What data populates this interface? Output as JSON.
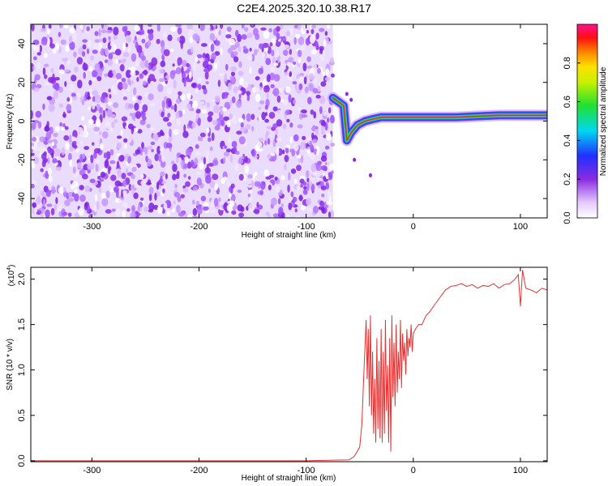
{
  "title": "C2E4.2025.320.10.38.R17",
  "chart_data": [
    {
      "type": "heatmap",
      "xlabel": "Height of straight line (km)",
      "ylabel": "Frequency (Hz)",
      "xlim": [
        -357,
        125
      ],
      "ylim": [
        -50,
        50
      ],
      "xticks": [
        -300,
        -200,
        -100,
        0,
        100
      ],
      "xtick_labels": [
        "-300",
        "-200",
        "-100",
        "0",
        "100"
      ],
      "yticks": [
        -40,
        -20,
        0,
        20,
        40
      ],
      "ytick_labels": [
        "-40",
        "-20",
        "0",
        "20",
        "40"
      ],
      "noise_region_x": [
        -357,
        -75
      ],
      "signal_track": {
        "x": [
          -75,
          -70,
          -65,
          -62,
          -58,
          -52,
          -45,
          -38,
          -30,
          -20,
          -10,
          0,
          20,
          40,
          60,
          80,
          100,
          125
        ],
        "y": [
          12,
          10,
          8,
          -10,
          -6,
          -2,
          0,
          1,
          2,
          2,
          2,
          2,
          2,
          2,
          2.5,
          3,
          3,
          3
        ]
      },
      "colorbar": {
        "label": "Normalized spectral amplitude",
        "range": [
          0,
          1
        ],
        "ticks": [
          0.0,
          0.2,
          0.4,
          0.6,
          0.8
        ],
        "tick_labels": [
          "0.0",
          "0.2",
          "0.4",
          "0.6",
          "0.8"
        ]
      }
    },
    {
      "type": "line",
      "xlabel": "Height of straight line (km)",
      "ylabel": "SNR (10 * v/v)",
      "multiplier": "(x10^4)",
      "multiplier_base": "(x10",
      "multiplier_exp": "4",
      "multiplier_close": ")",
      "xlim": [
        -357,
        125
      ],
      "ylim": [
        -0.01,
        2.13
      ],
      "xticks": [
        -300,
        -200,
        -100,
        0,
        100
      ],
      "xtick_labels": [
        "-300",
        "-200",
        "-100",
        "0",
        "100"
      ],
      "yticks": [
        0.0,
        0.5,
        1.0,
        1.5,
        2.0
      ],
      "ytick_labels": [
        "0.0",
        "0.5",
        "1.0",
        "1.5",
        "2.0"
      ],
      "color": "#e83030",
      "series": [
        {
          "name": "SNR",
          "x": [
            -357,
            -300,
            -200,
            -100,
            -60,
            -55,
            -50,
            -48,
            -46,
            -44,
            -43,
            -42,
            -41,
            -40,
            -39,
            -38,
            -37,
            -36,
            -35,
            -34,
            -33,
            -32,
            -31,
            -30,
            -29,
            -28,
            -27,
            -26,
            -25,
            -24,
            -23,
            -22,
            -21,
            -20,
            -19,
            -18,
            -17,
            -16,
            -15,
            -14,
            -13,
            -12,
            -11,
            -10,
            -9,
            -8,
            -7,
            -6,
            -5,
            -4,
            -3,
            -2,
            -1,
            0,
            2,
            5,
            8,
            12,
            16,
            20,
            25,
            30,
            35,
            40,
            45,
            50,
            55,
            60,
            65,
            70,
            75,
            80,
            85,
            90,
            95,
            98,
            100,
            102,
            105,
            110,
            115,
            120,
            125
          ],
          "y": [
            0.0,
            0.0,
            0.0,
            0.0,
            0.01,
            0.05,
            0.15,
            0.4,
            1.0,
            1.55,
            0.9,
            1.45,
            0.6,
            1.6,
            0.5,
            1.2,
            0.3,
            0.9,
            0.2,
            1.35,
            0.35,
            1.1,
            0.25,
            1.45,
            0.2,
            1.2,
            0.3,
            1.55,
            0.55,
            1.05,
            0.2,
            1.35,
            0.1,
            1.6,
            0.7,
            1.3,
            0.6,
            1.5,
            0.75,
            1.2,
            0.9,
            1.55,
            0.8,
            1.4,
            1.1,
            1.3,
            0.95,
            1.45,
            1.15,
            1.35,
            1.25,
            1.5,
            1.2,
            1.4,
            1.45,
            1.5,
            1.5,
            1.6,
            1.65,
            1.72,
            1.8,
            1.88,
            1.92,
            1.93,
            1.95,
            1.92,
            1.94,
            1.9,
            1.93,
            1.92,
            1.95,
            1.9,
            1.94,
            1.95,
            2.0,
            2.05,
            1.7,
            2.1,
            1.9,
            1.88,
            1.85,
            1.9,
            1.88
          ]
        }
      ]
    }
  ]
}
